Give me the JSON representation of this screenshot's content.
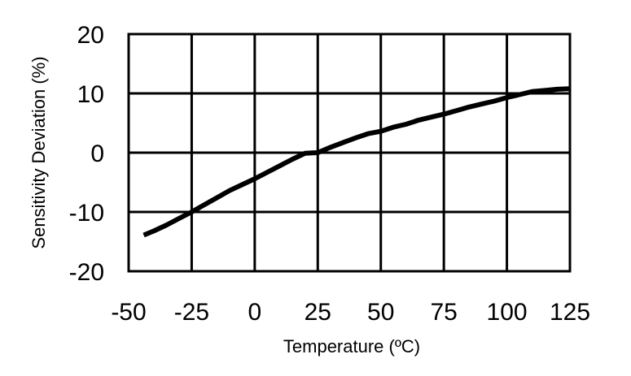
{
  "chart_data": {
    "type": "line",
    "title": "",
    "xlabel": "Temperature (ºC)",
    "ylabel": "Sensitivity Deviation (%)",
    "xlim": [
      -50,
      125
    ],
    "ylim": [
      -20,
      20
    ],
    "xticks": [
      -50,
      -25,
      0,
      25,
      50,
      75,
      100,
      125
    ],
    "yticks": [
      20,
      10,
      0,
      -10,
      -20
    ],
    "grid": true,
    "legend": "none",
    "line_color": "#000000",
    "series": [
      {
        "x": [
          -44,
          -40,
          -35,
          -30,
          -25,
          -20,
          -15,
          -10,
          -5,
          0,
          5,
          10,
          15,
          20,
          25,
          30,
          35,
          40,
          45,
          50,
          55,
          60,
          65,
          70,
          75,
          80,
          85,
          90,
          95,
          100,
          105,
          110,
          115,
          120,
          125
        ],
        "y": [
          -13.9,
          -13.2,
          -12.2,
          -11.1,
          -10.0,
          -8.8,
          -7.6,
          -6.4,
          -5.4,
          -4.4,
          -3.3,
          -2.2,
          -1.1,
          -0.1,
          0.0,
          0.9,
          1.7,
          2.5,
          3.2,
          3.6,
          4.3,
          4.8,
          5.5,
          6.0,
          6.5,
          7.1,
          7.7,
          8.2,
          8.7,
          9.3,
          9.8,
          10.3,
          10.5,
          10.7,
          10.8
        ]
      }
    ]
  }
}
